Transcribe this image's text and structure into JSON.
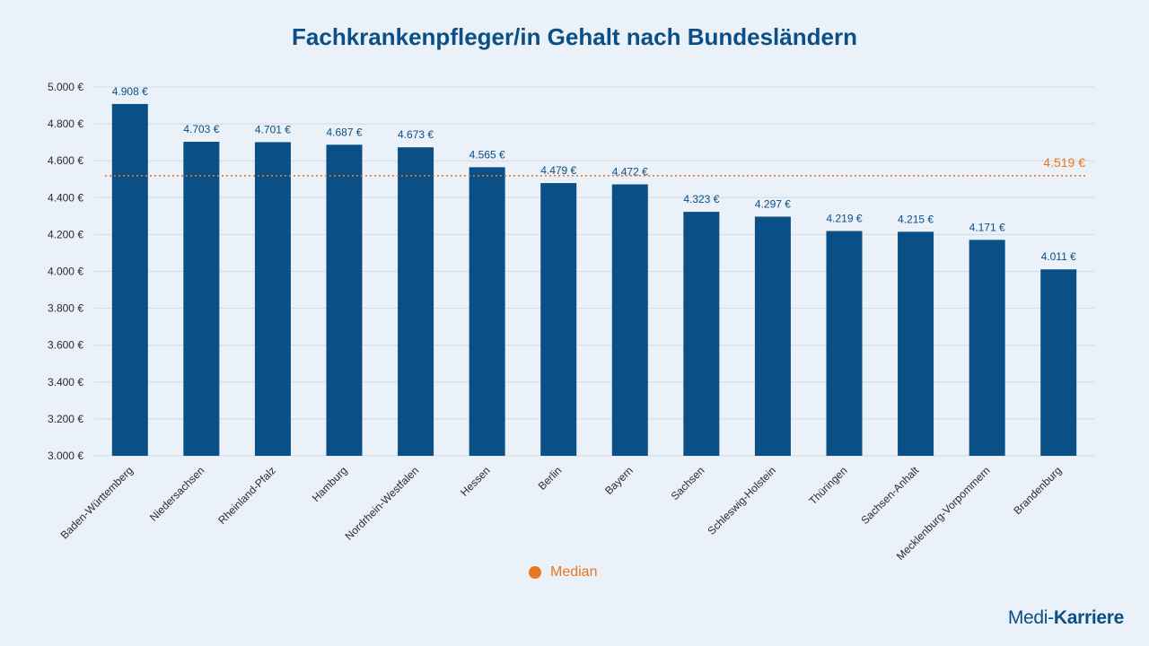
{
  "chart_data": {
    "type": "bar",
    "title": "Fachkrankenpfleger/in Gehalt nach Bundesländern",
    "categories": [
      "Baden-Württemberg",
      "Niedersachsen",
      "Rheinland-Pfalz",
      "Hamburg",
      "Nordrhein-Westfalen",
      "Hessen",
      "Berlin",
      "Bayern",
      "Sachsen",
      "Schleswig-Holstein",
      "Thüringen",
      "Sachsen-Anhalt",
      "Mecklenburg-Vorpommern",
      "Brandenburg"
    ],
    "values": [
      4908,
      4703,
      4701,
      4687,
      4673,
      4565,
      4479,
      4472,
      4323,
      4297,
      4219,
      4215,
      4171,
      4011
    ],
    "value_labels": [
      "4.908 €",
      "4.703 €",
      "4.701 €",
      "4.687 €",
      "4.673 €",
      "4.565 €",
      "4.479 €",
      "4.472 €",
      "4.323 €",
      "4.297 €",
      "4.219 €",
      "4.215 €",
      "4.171 €",
      "4.011 €"
    ],
    "ylim": [
      3000,
      5000
    ],
    "yticks": [
      3000,
      3200,
      3400,
      3600,
      3800,
      4000,
      4200,
      4400,
      4600,
      4800,
      5000
    ],
    "ytick_labels": [
      "3.000 €",
      "3.200 €",
      "3.400 €",
      "3.600 €",
      "3.800 €",
      "4.000 €",
      "4.200 €",
      "4.400 €",
      "4.600 €",
      "4.800 €",
      "5.000 €"
    ],
    "median": {
      "value": 4519,
      "label": "4.519 €",
      "legend": "Median"
    },
    "grid": true,
    "legend_position": "bottom"
  },
  "colors": {
    "bar": "#0a4f86",
    "median": "#e87722",
    "grid": "#d3dae1",
    "title": "#0a4f86",
    "tick_text": "#2b2b2b",
    "value_text": "#0a4f86"
  },
  "brand": {
    "part1": "Medi-",
    "part2": "Karriere"
  }
}
